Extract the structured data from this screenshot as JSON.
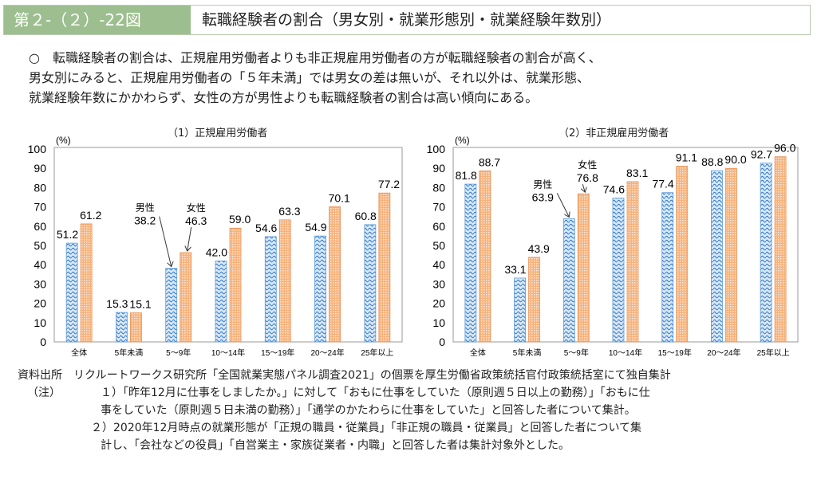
{
  "header": {
    "figure_no": "第２-（２）-22図",
    "title": "転職経験者の割合（男女別・就業形態別・就業経験年数別）"
  },
  "summary": {
    "bullet": "○",
    "lines": [
      "転職経験者の割合は、正規雇用労働者よりも非正規雇用労働者の方が転職経験者の割合が高く、",
      "男女別にみると、正規雇用労働者の「５年未満」では男女の差は無いが、それ以外は、就業形態、",
      "就業経験年数にかかわらず、女性の方が男性よりも転職経験者の割合は高い傾向にある。"
    ]
  },
  "colors": {
    "male": "#5b9bd5",
    "female": "#f4a46a"
  },
  "chart_data": [
    {
      "type": "bar",
      "title": "（1）正規雇用労働者",
      "ylabel": "(%)",
      "ylim": [
        0,
        100
      ],
      "yticks": [
        0,
        10,
        20,
        30,
        40,
        50,
        60,
        70,
        80,
        90,
        100
      ],
      "categories": [
        "全体",
        "5年未満",
        "5～9年",
        "10～14年",
        "15～19年",
        "20～24年",
        "25年以上"
      ],
      "series": [
        {
          "name": "男性",
          "values": [
            51.2,
            15.3,
            38.2,
            42.0,
            54.6,
            54.9,
            60.8
          ]
        },
        {
          "name": "女性",
          "values": [
            61.2,
            15.1,
            46.3,
            59.0,
            63.3,
            70.1,
            77.2
          ]
        }
      ],
      "annotations": [
        {
          "text": "男性",
          "category": "5～9年",
          "series": "男性"
        },
        {
          "text": "女性",
          "category": "5～9年",
          "series": "女性"
        }
      ]
    },
    {
      "type": "bar",
      "title": "（2）非正規雇用労働者",
      "ylabel": "(%)",
      "ylim": [
        0,
        100
      ],
      "yticks": [
        0,
        10,
        20,
        30,
        40,
        50,
        60,
        70,
        80,
        90,
        100
      ],
      "categories": [
        "全体",
        "5年未満",
        "5～9年",
        "10～14年",
        "15～19年",
        "20～24年",
        "25年以上"
      ],
      "series": [
        {
          "name": "男性",
          "values": [
            81.8,
            33.1,
            63.9,
            74.6,
            77.4,
            88.8,
            92.7
          ]
        },
        {
          "name": "女性",
          "values": [
            88.7,
            43.9,
            76.8,
            83.1,
            91.1,
            90.0,
            96.0
          ]
        }
      ],
      "annotations": [
        {
          "text": "男性",
          "category": "5～9年",
          "series": "男性"
        },
        {
          "text": "女性",
          "category": "5～9年",
          "series": "女性"
        }
      ]
    }
  ],
  "footer": {
    "source": [
      "資料出所　リクルートワークス研究所「全国就業実態パネル調査2021」の個票を厚生労働省政策統括官付政策統括室にて独自集計"
    ],
    "notes_label": "（注）",
    "notes": [
      "１）「昨年12月に仕事をしましたか。」に対して「おもに仕事をしていた（原則週５日以上の勤務）」「おもに仕",
      "事をしていた（原則週５日未満の勤務）」「通学のかたわらに仕事をしていた」と回答した者について集計。",
      "２）2020年12月時点の就業形態が「正規の職員・従業員」「非正規の職員・従業員」と回答した者について集",
      "計し、「会社などの役員」「自営業主・家族従業者・内職」と回答した者は集計対象外とした。"
    ]
  }
}
